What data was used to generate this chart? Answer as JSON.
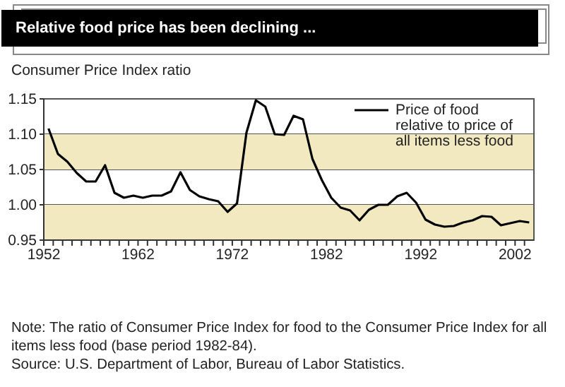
{
  "chart_data": {
    "type": "line",
    "title": "Relative food price has been declining ...",
    "ylabel": "Consumer Price Index ratio",
    "annotations": [
      "Note: The ratio of Consumer Price Index for food to the Consumer Price Index for all items less food (base period 1982-84).",
      "Source: U.S. Department of Labor, Bureau of Labor Statistics."
    ],
    "x": [
      1952.5,
      1953.5,
      1954.5,
      1955.5,
      1956.5,
      1957.5,
      1958.5,
      1959.5,
      1960.5,
      1961.5,
      1962.5,
      1963.5,
      1964.5,
      1965.5,
      1966.5,
      1967.5,
      1968.5,
      1969.5,
      1970.5,
      1971.5,
      1972.5,
      1973.5,
      1974.5,
      1975.5,
      1976.5,
      1977.5,
      1978.5,
      1979.5,
      1980.5,
      1981.5,
      1982.5,
      1983.5,
      1984.5,
      1985.5,
      1986.5,
      1987.5,
      1988.5,
      1989.5,
      1990.5,
      1991.5,
      1992.5,
      1993.5,
      1994.5,
      1995.5,
      1996.5,
      1997.5,
      1998.5,
      1999.5,
      2000.5,
      2001.5,
      2002.5,
      2003.5
    ],
    "series": [
      {
        "name": "Price of food relative to price of all items less food",
        "color": "#000000",
        "values": [
          1.108,
          1.072,
          1.061,
          1.045,
          1.033,
          1.033,
          1.056,
          1.017,
          1.01,
          1.013,
          1.01,
          1.013,
          1.013,
          1.019,
          1.046,
          1.021,
          1.012,
          1.008,
          1.005,
          0.99,
          1.002,
          1.102,
          1.148,
          1.139,
          1.1,
          1.099,
          1.126,
          1.121,
          1.065,
          1.035,
          1.01,
          0.996,
          0.992,
          0.978,
          0.993,
          1.0,
          1.0,
          1.012,
          1.017,
          1.003,
          0.979,
          0.972,
          0.969,
          0.97,
          0.975,
          0.978,
          0.984,
          0.983,
          0.971,
          0.974,
          0.977,
          0.975
        ]
      }
    ],
    "xlim": [
      1952,
      2004
    ],
    "xticks": [
      1952,
      {
        "value": 1953,
        "label": null
      },
      {
        "value": 1954,
        "label": null
      },
      {
        "value": 1955,
        "label": null
      },
      {
        "value": 1956,
        "label": null
      },
      {
        "value": 1957,
        "label": null
      },
      {
        "value": 1958,
        "label": null
      },
      {
        "value": 1959,
        "label": null
      },
      {
        "value": 1960,
        "label": null
      },
      {
        "value": 1961,
        "label": null
      },
      1962,
      {
        "value": 1963,
        "label": null
      },
      {
        "value": 1964,
        "label": null
      },
      {
        "value": 1965,
        "label": null
      },
      {
        "value": 1966,
        "label": null
      },
      {
        "value": 1967,
        "label": null
      },
      {
        "value": 1968,
        "label": null
      },
      {
        "value": 1969,
        "label": null
      },
      {
        "value": 1970,
        "label": null
      },
      {
        "value": 1971,
        "label": null
      },
      1972,
      {
        "value": 1973,
        "label": null
      },
      {
        "value": 1974,
        "label": null
      },
      {
        "value": 1975,
        "label": null
      },
      {
        "value": 1976,
        "label": null
      },
      {
        "value": 1977,
        "label": null
      },
      {
        "value": 1978,
        "label": null
      },
      {
        "value": 1979,
        "label": null
      },
      {
        "value": 1980,
        "label": null
      },
      {
        "value": 1981,
        "label": null
      },
      1982,
      {
        "value": 1983,
        "label": null
      },
      {
        "value": 1984,
        "label": null
      },
      {
        "value": 1985,
        "label": null
      },
      {
        "value": 1986,
        "label": null
      },
      {
        "value": 1987,
        "label": null
      },
      {
        "value": 1988,
        "label": null
      },
      {
        "value": 1989,
        "label": null
      },
      {
        "value": 1990,
        "label": null
      },
      {
        "value": 1991,
        "label": null
      },
      1992,
      {
        "value": 1993,
        "label": null
      },
      {
        "value": 1994,
        "label": null
      },
      {
        "value": 1995,
        "label": null
      },
      {
        "value": 1996,
        "label": null
      },
      {
        "value": 1997,
        "label": null
      },
      {
        "value": 1998,
        "label": null
      },
      {
        "value": 1999,
        "label": null
      },
      {
        "value": 2000,
        "label": null
      },
      {
        "value": 2001,
        "label": null
      },
      2002,
      {
        "value": 2003,
        "label": null
      }
    ],
    "ylim": [
      0.95,
      1.15
    ],
    "yticks": [
      {
        "value": 0.95,
        "label": "0.95"
      },
      {
        "value": 1.0,
        "label": "1.00"
      },
      {
        "value": 1.05,
        "label": "1.05"
      },
      {
        "value": 1.1,
        "label": "1.10"
      },
      {
        "value": 1.15,
        "label": "1.15"
      }
    ],
    "bands": [
      {
        "axis": "y",
        "from": 0.95,
        "to": 1.0,
        "color": "#f2e9c0"
      },
      {
        "axis": "y",
        "from": 1.05,
        "to": 1.1,
        "color": "#f2e9c0"
      }
    ],
    "grid": "y",
    "legend": "top right",
    "marker": "none",
    "line_style": "solid"
  }
}
